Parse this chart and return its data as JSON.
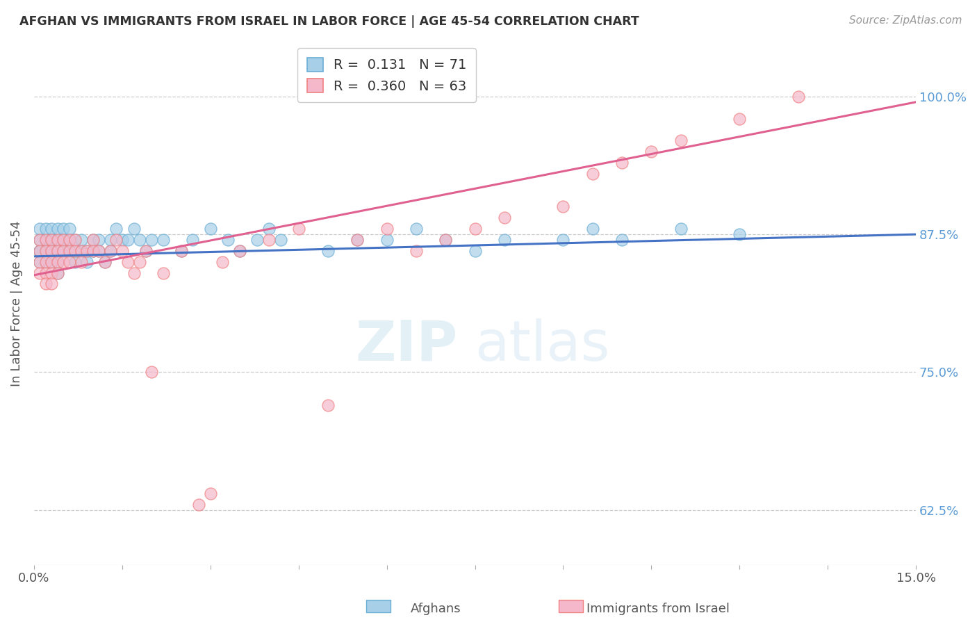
{
  "title": "AFGHAN VS IMMIGRANTS FROM ISRAEL IN LABOR FORCE | AGE 45-54 CORRELATION CHART",
  "source": "Source: ZipAtlas.com",
  "ylabel": "In Labor Force | Age 45-54",
  "ytick_labels": [
    "62.5%",
    "75.0%",
    "87.5%",
    "100.0%"
  ],
  "ytick_values": [
    0.625,
    0.75,
    0.875,
    1.0
  ],
  "xlim": [
    0.0,
    0.15
  ],
  "ylim": [
    0.575,
    1.05
  ],
  "color_blue": "#a8cfe8",
  "color_pink": "#f5b8cb",
  "edge_blue": "#6aaed6",
  "edge_pink": "#f08080",
  "line_blue": "#4472c4",
  "line_pink": "#e06090",
  "tick_color": "#5b9bd5",
  "afghan_x": [
    0.001,
    0.001,
    0.001,
    0.001,
    0.001,
    0.002,
    0.002,
    0.002,
    0.002,
    0.002,
    0.002,
    0.003,
    0.003,
    0.003,
    0.003,
    0.003,
    0.003,
    0.004,
    0.004,
    0.004,
    0.004,
    0.004,
    0.005,
    0.005,
    0.005,
    0.005,
    0.006,
    0.006,
    0.006,
    0.007,
    0.007,
    0.007,
    0.008,
    0.008,
    0.009,
    0.009,
    0.01,
    0.01,
    0.011,
    0.011,
    0.012,
    0.013,
    0.013,
    0.014,
    0.015,
    0.016,
    0.017,
    0.018,
    0.019,
    0.02,
    0.022,
    0.025,
    0.027,
    0.03,
    0.033,
    0.035,
    0.038,
    0.04,
    0.042,
    0.05,
    0.055,
    0.06,
    0.065,
    0.07,
    0.075,
    0.08,
    0.09,
    0.095,
    0.1,
    0.11,
    0.12
  ],
  "afghan_y": [
    0.87,
    0.88,
    0.86,
    0.85,
    0.86,
    0.87,
    0.86,
    0.85,
    0.87,
    0.86,
    0.88,
    0.87,
    0.86,
    0.88,
    0.87,
    0.86,
    0.85,
    0.87,
    0.88,
    0.86,
    0.85,
    0.84,
    0.87,
    0.86,
    0.88,
    0.87,
    0.86,
    0.87,
    0.88,
    0.86,
    0.85,
    0.87,
    0.86,
    0.87,
    0.86,
    0.85,
    0.87,
    0.86,
    0.87,
    0.86,
    0.85,
    0.87,
    0.86,
    0.88,
    0.87,
    0.87,
    0.88,
    0.87,
    0.86,
    0.87,
    0.87,
    0.86,
    0.87,
    0.88,
    0.87,
    0.86,
    0.87,
    0.88,
    0.87,
    0.86,
    0.87,
    0.87,
    0.88,
    0.87,
    0.86,
    0.87,
    0.87,
    0.88,
    0.87,
    0.88,
    0.875
  ],
  "israel_x": [
    0.001,
    0.001,
    0.001,
    0.001,
    0.002,
    0.002,
    0.002,
    0.002,
    0.002,
    0.003,
    0.003,
    0.003,
    0.003,
    0.003,
    0.004,
    0.004,
    0.004,
    0.004,
    0.005,
    0.005,
    0.005,
    0.006,
    0.006,
    0.006,
    0.007,
    0.007,
    0.008,
    0.008,
    0.009,
    0.01,
    0.01,
    0.011,
    0.012,
    0.013,
    0.014,
    0.015,
    0.016,
    0.017,
    0.018,
    0.019,
    0.02,
    0.022,
    0.025,
    0.028,
    0.03,
    0.032,
    0.035,
    0.04,
    0.045,
    0.05,
    0.055,
    0.06,
    0.065,
    0.07,
    0.075,
    0.08,
    0.09,
    0.095,
    0.1,
    0.105,
    0.11,
    0.12,
    0.13
  ],
  "israel_y": [
    0.87,
    0.86,
    0.85,
    0.84,
    0.87,
    0.86,
    0.85,
    0.84,
    0.83,
    0.87,
    0.86,
    0.85,
    0.84,
    0.83,
    0.87,
    0.86,
    0.85,
    0.84,
    0.87,
    0.86,
    0.85,
    0.87,
    0.86,
    0.85,
    0.87,
    0.86,
    0.86,
    0.85,
    0.86,
    0.87,
    0.86,
    0.86,
    0.85,
    0.86,
    0.87,
    0.86,
    0.85,
    0.84,
    0.85,
    0.86,
    0.75,
    0.84,
    0.86,
    0.63,
    0.64,
    0.85,
    0.86,
    0.87,
    0.88,
    0.72,
    0.87,
    0.88,
    0.86,
    0.87,
    0.88,
    0.89,
    0.9,
    0.93,
    0.94,
    0.95,
    0.96,
    0.98,
    1.0
  ],
  "blue_line_x0": 0.0,
  "blue_line_x1": 0.15,
  "blue_line_y0": 0.855,
  "blue_line_y1": 0.875,
  "pink_line_x0": 0.0,
  "pink_line_x1": 0.15,
  "pink_line_y0": 0.838,
  "pink_line_y1": 0.995
}
